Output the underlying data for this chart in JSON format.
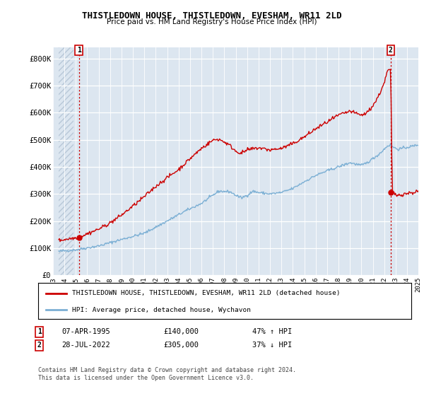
{
  "title": "THISTLEDOWN HOUSE, THISTLEDOWN, EVESHAM, WR11 2LD",
  "subtitle": "Price paid vs. HM Land Registry's House Price Index (HPI)",
  "ylabel_ticks": [
    "£0",
    "£100K",
    "£200K",
    "£300K",
    "£400K",
    "£500K",
    "£600K",
    "£700K",
    "£800K"
  ],
  "ytick_values": [
    0,
    100000,
    200000,
    300000,
    400000,
    500000,
    600000,
    700000,
    800000
  ],
  "ylim": [
    0,
    840000
  ],
  "xlim": [
    1993.5,
    2025.0
  ],
  "background_color": "#ffffff",
  "plot_bg_color": "#dce6f0",
  "hatch_color": "#c8d4e0",
  "grid_color": "#ffffff",
  "red_line_color": "#cc0000",
  "blue_line_color": "#7bafd4",
  "sale1": {
    "date_num": 1995.27,
    "price": 140000,
    "label": "1",
    "date_str": "07-APR-1995",
    "hpi_pct": "47% ↑ HPI"
  },
  "sale2": {
    "date_num": 2022.57,
    "price": 305000,
    "label": "2",
    "date_str": "28-JUL-2022",
    "hpi_pct": "37% ↓ HPI"
  },
  "legend_red": "THISTLEDOWN HOUSE, THISTLEDOWN, EVESHAM, WR11 2LD (detached house)",
  "legend_blue": "HPI: Average price, detached house, Wychavon",
  "footer": "Contains HM Land Registry data © Crown copyright and database right 2024.\nThis data is licensed under the Open Government Licence v3.0.",
  "xtick_years": [
    1993,
    1994,
    1995,
    1996,
    1997,
    1998,
    1999,
    2000,
    2001,
    2002,
    2003,
    2004,
    2005,
    2006,
    2007,
    2008,
    2009,
    2010,
    2011,
    2012,
    2013,
    2014,
    2015,
    2016,
    2017,
    2018,
    2019,
    2020,
    2021,
    2022,
    2023,
    2024,
    2025
  ]
}
